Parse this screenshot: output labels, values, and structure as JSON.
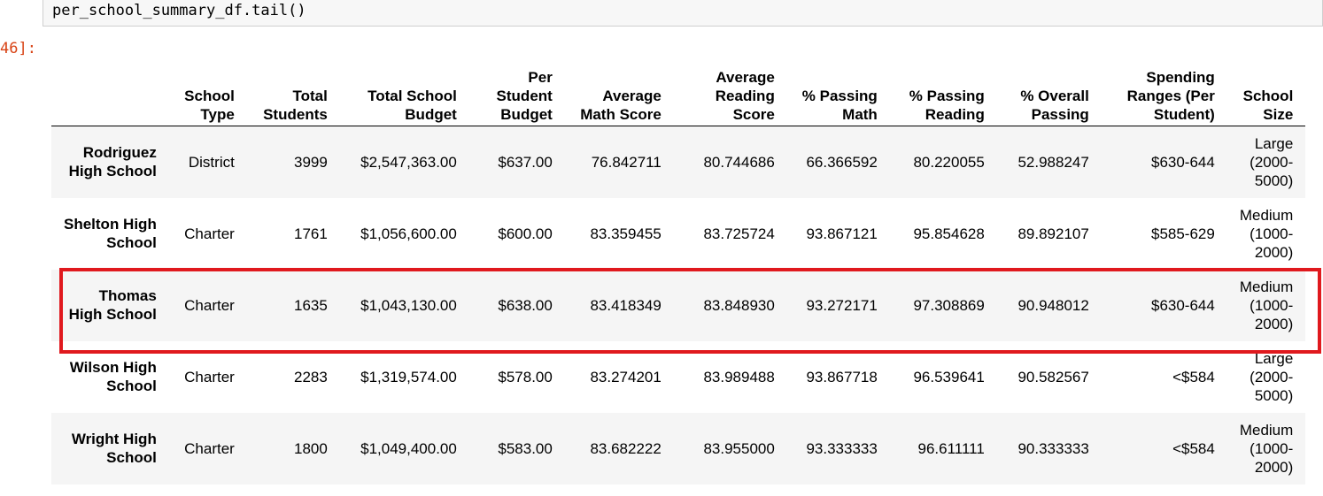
{
  "code_cell": {
    "code": "per_school_summary_df.tail()"
  },
  "output_prompt": "46]:",
  "table": {
    "columns": [
      "",
      "School Type",
      "Total Students",
      "Total School Budget",
      "Per Student Budget",
      "Average Math Score",
      "Average Reading Score",
      "% Passing Math",
      "% Passing Reading",
      "% Overall Passing",
      "Spending Ranges (Per Student)",
      "School Size"
    ],
    "rows": [
      [
        "Rodriguez High School",
        "District",
        "3999",
        "$2,547,363.00",
        "$637.00",
        "76.842711",
        "80.744686",
        "66.366592",
        "80.220055",
        "52.988247",
        "$630-644",
        "Large (2000-5000)"
      ],
      [
        "Shelton High School",
        "Charter",
        "1761",
        "$1,056,600.00",
        "$600.00",
        "83.359455",
        "83.725724",
        "93.867121",
        "95.854628",
        "89.892107",
        "$585-629",
        "Medium (1000-2000)"
      ],
      [
        "Thomas High School",
        "Charter",
        "1635",
        "$1,043,130.00",
        "$638.00",
        "83.418349",
        "83.848930",
        "93.272171",
        "97.308869",
        "90.948012",
        "$630-644",
        "Medium (1000-2000)"
      ],
      [
        "Wilson High School",
        "Charter",
        "2283",
        "$1,319,574.00",
        "$578.00",
        "83.274201",
        "83.989488",
        "93.867718",
        "96.539641",
        "90.582567",
        "<$584",
        "Large (2000-5000)"
      ],
      [
        "Wright High School",
        "Charter",
        "1800",
        "$1,049,400.00",
        "$583.00",
        "83.682222",
        "83.955000",
        "93.333333",
        "96.611111",
        "90.333333",
        "<$584",
        "Medium (1000-2000)"
      ]
    ],
    "highlighted_row_index": 2
  },
  "colors": {
    "highlight_border": "#e0191e",
    "prompt_color": "#d84315",
    "odd_row_bg": "#f5f5f5"
  }
}
